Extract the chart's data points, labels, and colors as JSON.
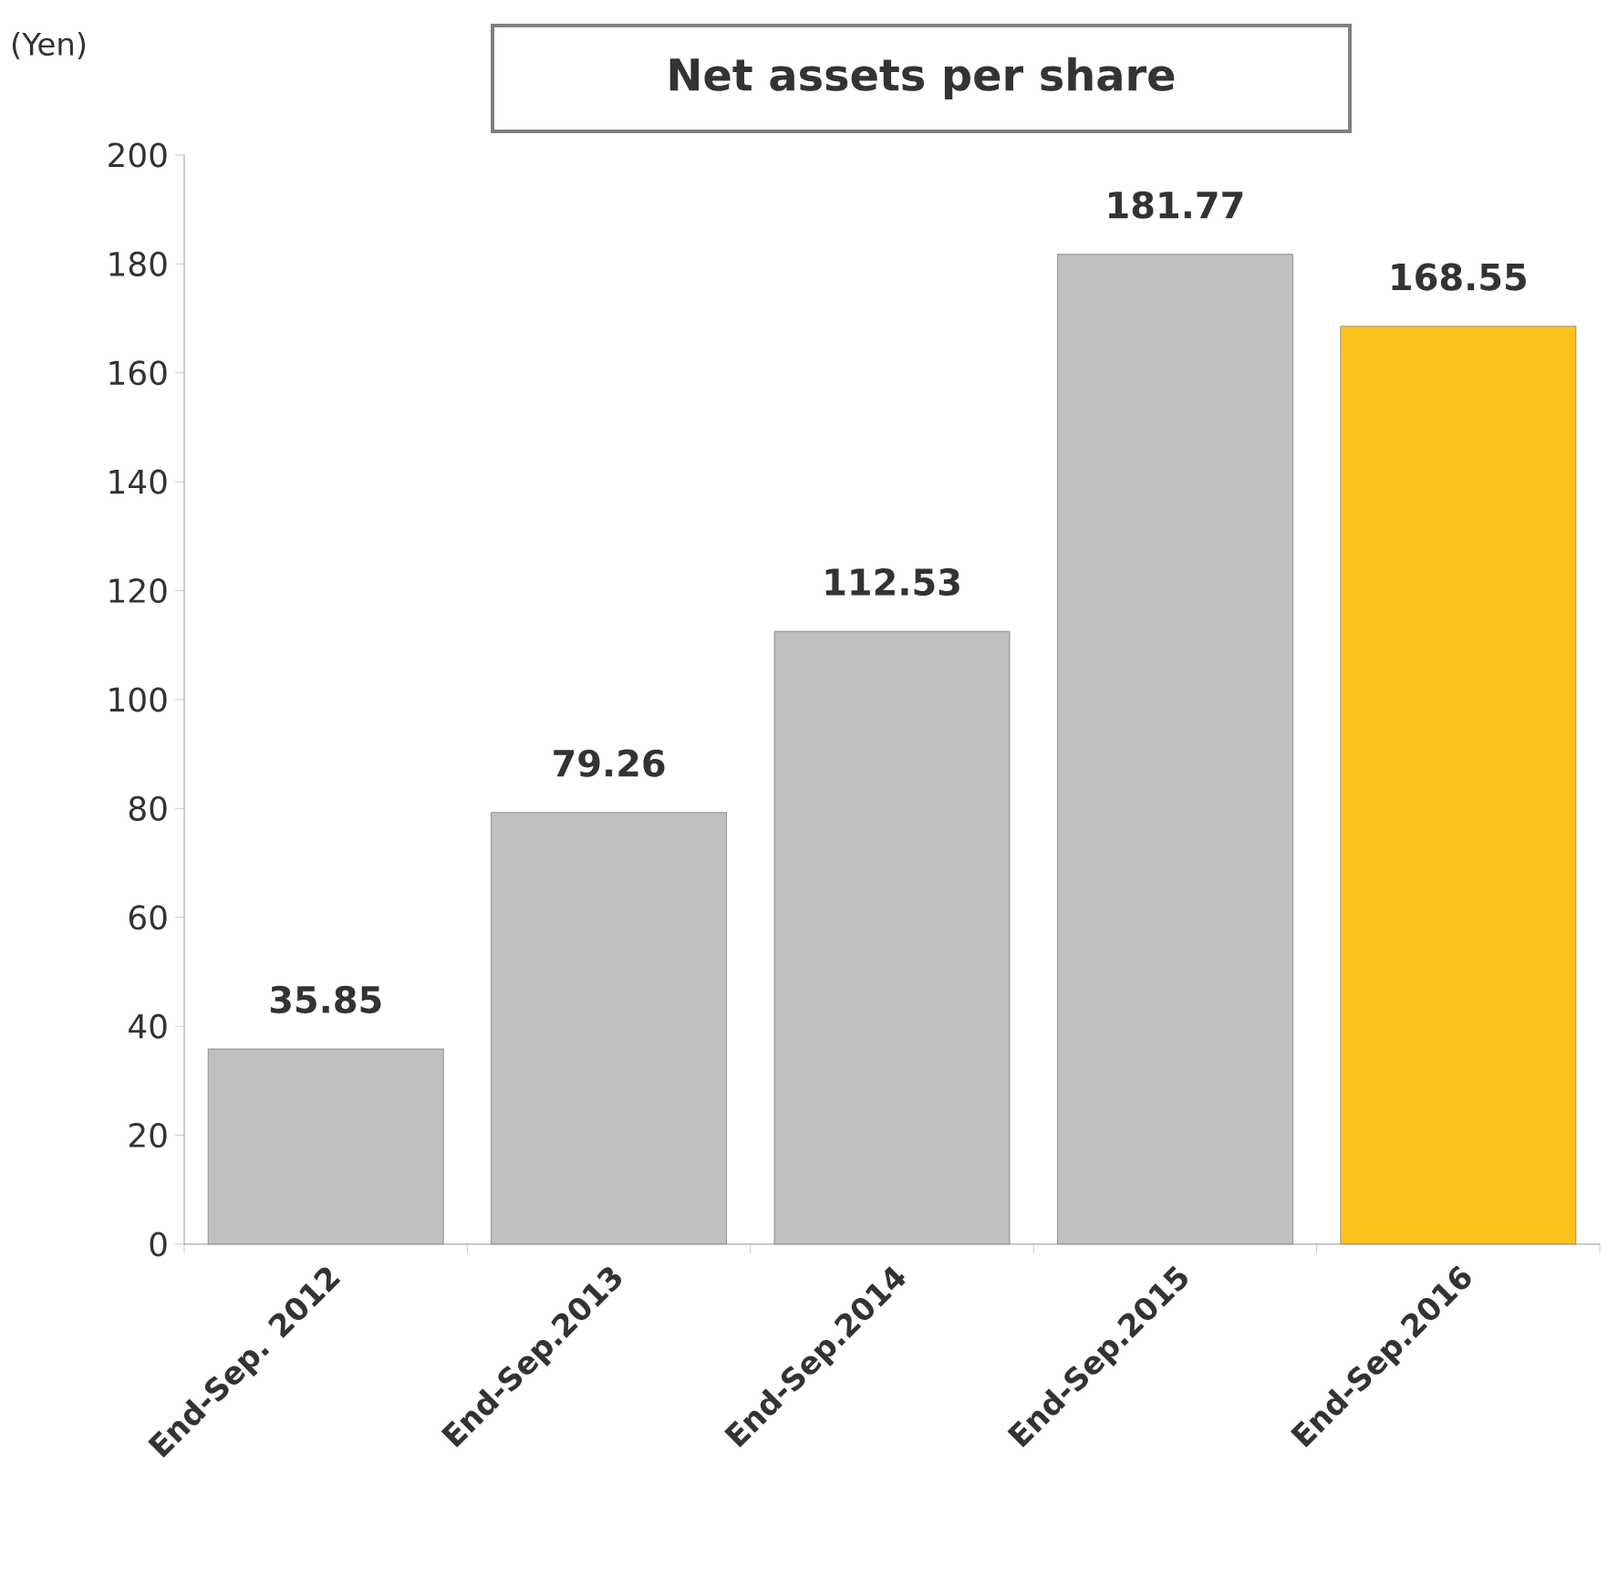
{
  "chart_data": {
    "type": "bar",
    "title": "Net assets per share",
    "ylabel": "(Yen)",
    "categories": [
      "End-Sep. 2012",
      "End-Sep.2013",
      "End-Sep.2014",
      "End-Sep.2015",
      "End-Sep.2016"
    ],
    "values": [
      35.85,
      79.26,
      112.53,
      181.77,
      168.55
    ],
    "colors": [
      "#bfbfbf",
      "#bfbfbf",
      "#bfbfbf",
      "#bfbfbf",
      "#ffc31e"
    ],
    "ylim": [
      0,
      200
    ],
    "yticks": [
      0,
      20,
      40,
      60,
      80,
      100,
      120,
      140,
      160,
      180,
      200
    ],
    "data_labels": true
  }
}
